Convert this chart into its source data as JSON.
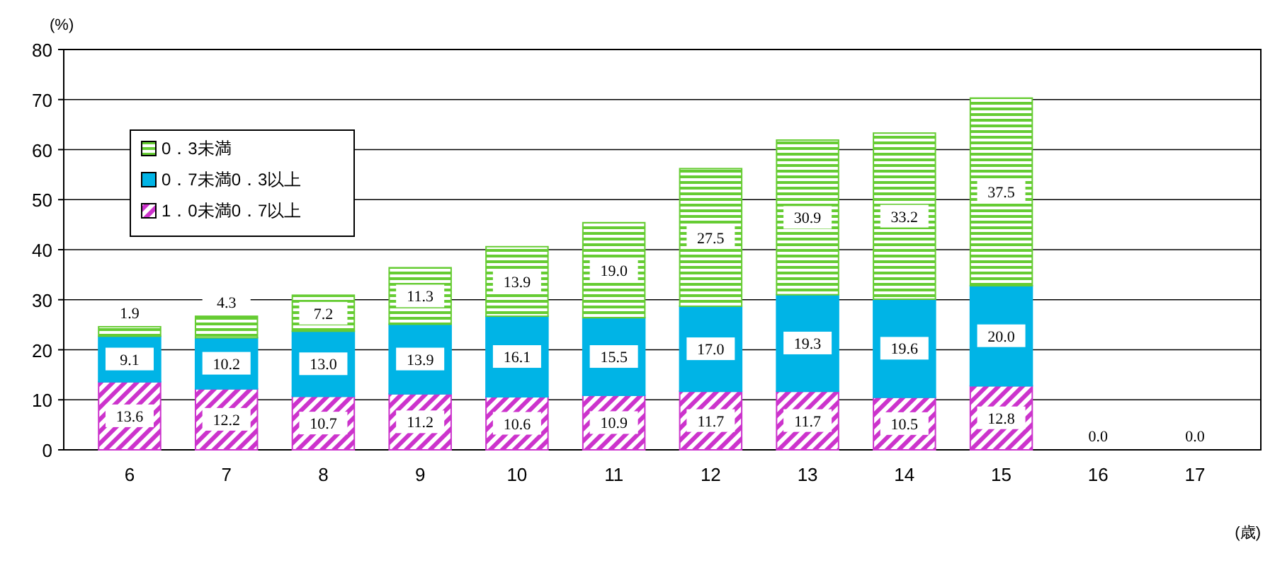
{
  "chart_data": {
    "type": "bar",
    "stacked": true,
    "xlabel": "(歳)",
    "ylabel": "(%)",
    "categories": [
      "6",
      "7",
      "8",
      "9",
      "10",
      "11",
      "12",
      "13",
      "14",
      "15",
      "16",
      "17"
    ],
    "series": [
      {
        "name": "1．0未満0．7以上",
        "color": "#cc33cc",
        "values": [
          13.6,
          12.2,
          10.7,
          11.2,
          10.6,
          10.9,
          11.7,
          11.7,
          10.5,
          12.8,
          0,
          0
        ],
        "value_labels": [
          "13.6",
          "12.2",
          "10.7",
          "11.2",
          "10.6",
          "10.9",
          "11.7",
          "11.7",
          "10.5",
          "12.8",
          null,
          null
        ]
      },
      {
        "name": "0．7未満0．3以上",
        "color": "#00b4e6",
        "values": [
          9.1,
          10.2,
          13.0,
          13.9,
          16.1,
          15.5,
          17.0,
          19.3,
          19.6,
          20.0,
          0,
          0
        ],
        "value_labels": [
          "9.1",
          "10.2",
          "13.0",
          "13.9",
          "16.1",
          "15.5",
          "17.0",
          "19.3",
          "19.6",
          "20.0",
          null,
          null
        ]
      },
      {
        "name": "0．3未満",
        "color": "#66cc33",
        "values": [
          1.9,
          4.3,
          7.2,
          11.3,
          13.9,
          19.0,
          27.5,
          30.9,
          33.2,
          37.5,
          0,
          0
        ],
        "value_labels": [
          "1.9",
          "4.3",
          "7.2",
          "11.3",
          "13.9",
          "19.0",
          "27.5",
          "30.9",
          "33.2",
          "37.5",
          null,
          null
        ]
      }
    ],
    "totals": [
      null,
      null,
      null,
      null,
      null,
      null,
      null,
      null,
      null,
      null,
      "0.0",
      "0.0"
    ],
    "ylim": [
      0,
      80
    ],
    "yticks": [
      0,
      10,
      20,
      30,
      40,
      50,
      60,
      70,
      80
    ],
    "grid": "y",
    "legend": "top left"
  }
}
